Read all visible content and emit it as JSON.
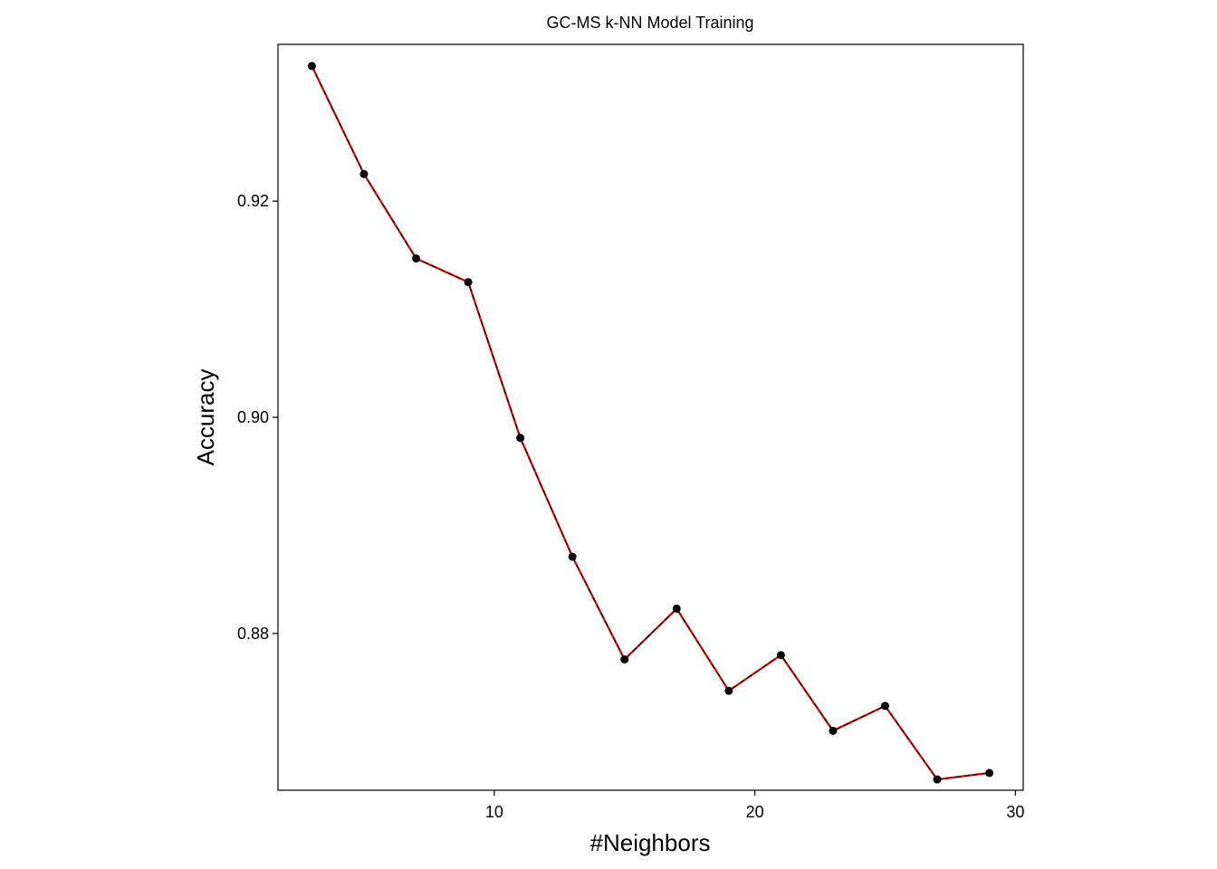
{
  "chart_data": {
    "type": "line",
    "title": "GC-MS k-NN Model Training",
    "xlabel": "#Neighbors",
    "ylabel": "Accuracy",
    "xlim": [
      1.7,
      30.3
    ],
    "ylim": [
      0.8655,
      0.9345
    ],
    "xticks": [
      10,
      20,
      30
    ],
    "yticks": [
      0.88,
      0.9,
      0.92
    ],
    "grid": false,
    "legend": "none",
    "x": [
      3,
      5,
      7,
      9,
      11,
      13,
      15,
      17,
      19,
      21,
      23,
      25,
      27,
      29
    ],
    "series": [
      {
        "values": [
          0.9325,
          0.9225,
          0.9147,
          0.9125,
          0.8981,
          0.8871,
          0.8776,
          0.8823,
          0.8747,
          0.878,
          0.871,
          0.8733,
          0.8665,
          0.8671
        ],
        "line_color": "#e00000",
        "overlay_color": "#000000",
        "point_color": "#000000"
      }
    ]
  }
}
